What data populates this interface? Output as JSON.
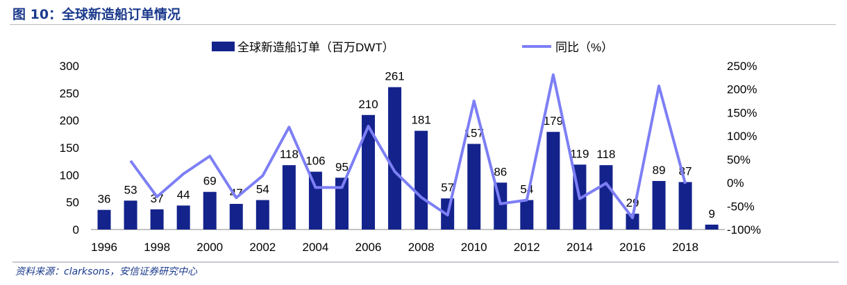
{
  "title": "图 10：全球新造船订单情况",
  "source": "资料来源：clarksons，安信证券研究中心",
  "colors": {
    "bar": "#14238c",
    "line": "#7d7ff5",
    "title": "#1b3a8c"
  },
  "chart_data": {
    "type": "bar+line",
    "categories": [
      1996,
      1997,
      1998,
      1999,
      2000,
      2001,
      2002,
      2003,
      2004,
      2005,
      2006,
      2007,
      2008,
      2009,
      2010,
      2011,
      2012,
      2013,
      2014,
      2015,
      2016,
      2017,
      2018,
      2019
    ],
    "x_tick_labels": [
      "1996",
      "1998",
      "2000",
      "2002",
      "2004",
      "2006",
      "2008",
      "2010",
      "2012",
      "2014",
      "2016",
      "2018"
    ],
    "series": [
      {
        "name": "全球新造船订单（百万DWT）",
        "type": "bar",
        "axis": "left",
        "values": [
          36,
          53,
          37,
          44,
          69,
          47,
          54,
          118,
          106,
          95,
          210,
          261,
          181,
          57,
          157,
          86,
          54,
          179,
          119,
          118,
          29,
          89,
          87,
          9
        ]
      },
      {
        "name": "同比（%）",
        "type": "line",
        "axis": "right",
        "values": [
          null,
          47,
          -30,
          19,
          57,
          -32,
          15,
          119,
          -10,
          -10,
          121,
          24,
          -31,
          -69,
          175,
          -45,
          -37,
          231,
          -34,
          -1,
          -75,
          207,
          -2,
          null
        ]
      }
    ],
    "left_axis": {
      "min": 0,
      "max": 300,
      "ticks": [
        0,
        50,
        100,
        150,
        200,
        250,
        300
      ]
    },
    "right_axis": {
      "min": -100,
      "max": 250,
      "ticks": [
        "-100%",
        "-50%",
        "0%",
        "50%",
        "100%",
        "150%",
        "200%",
        "250%"
      ]
    },
    "legend_position": "top",
    "grid": false
  }
}
